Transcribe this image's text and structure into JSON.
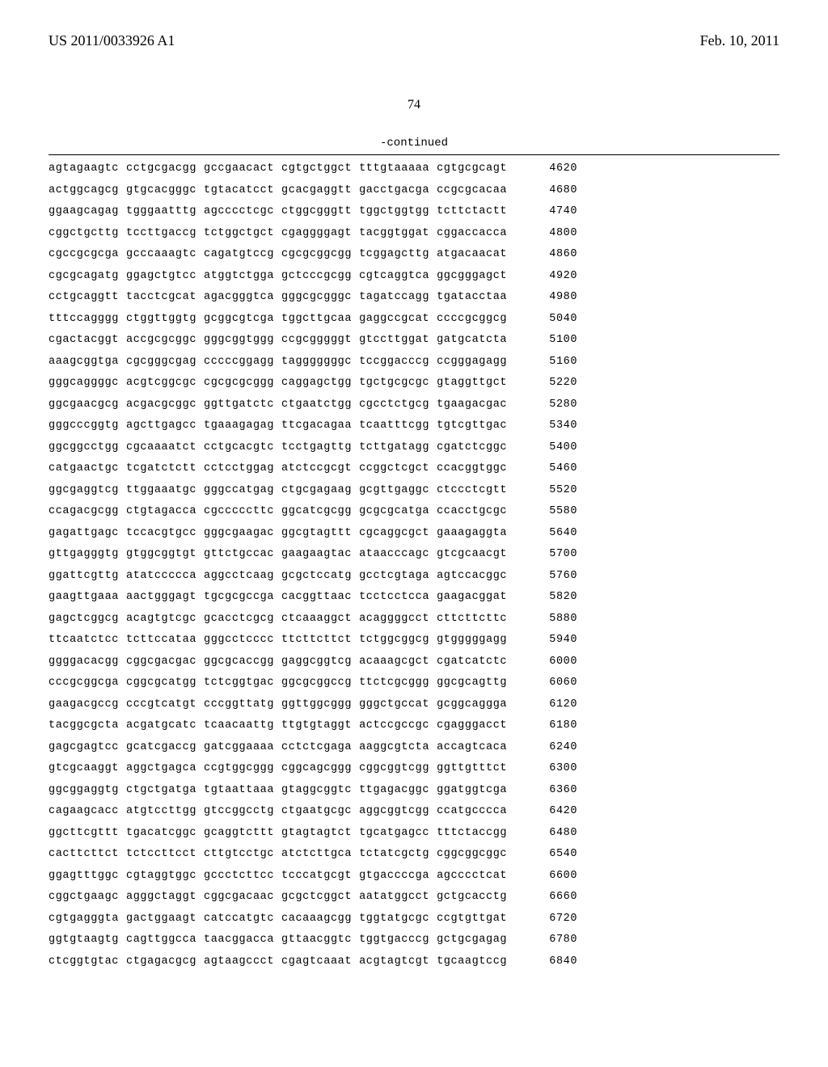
{
  "header": {
    "publication_number": "US 2011/0033926 A1",
    "publication_date": "Feb. 10, 2011"
  },
  "page_number": "74",
  "continued_label": "-continued",
  "sequence": {
    "font_family": "Courier New",
    "font_size_pt": 10,
    "text_color": "#000000",
    "background_color": "#ffffff",
    "block_length": 10,
    "blocks_per_row": 6,
    "rows": [
      {
        "blocks": [
          "agtagaagtc",
          "cctgcgacgg",
          "gccgaacact",
          "cgtgctggct",
          "tttgtaaaaa",
          "cgtgcgcagt"
        ],
        "pos": 4620
      },
      {
        "blocks": [
          "actggcagcg",
          "gtgcacgggc",
          "tgtacatcct",
          "gcacgaggtt",
          "gacctgacga",
          "ccgcgcacaa"
        ],
        "pos": 4680
      },
      {
        "blocks": [
          "ggaagcagag",
          "tgggaatttg",
          "agcccctcgc",
          "ctggcgggtt",
          "tggctggtgg",
          "tcttctactt"
        ],
        "pos": 4740
      },
      {
        "blocks": [
          "cggctgcttg",
          "tccttgaccg",
          "tctggctgct",
          "cgaggggagt",
          "tacggtggat",
          "cggaccacca"
        ],
        "pos": 4800
      },
      {
        "blocks": [
          "cgccgcgcga",
          "gcccaaagtc",
          "cagatgtccg",
          "cgcgcggcgg",
          "tcggagcttg",
          "atgacaacat"
        ],
        "pos": 4860
      },
      {
        "blocks": [
          "cgcgcagatg",
          "ggagctgtcc",
          "atggtctgga",
          "gctcccgcgg",
          "cgtcaggtca",
          "ggcgggagct"
        ],
        "pos": 4920
      },
      {
        "blocks": [
          "cctgcaggtt",
          "tacctcgcat",
          "agacgggtca",
          "gggcgcgggc",
          "tagatccagg",
          "tgatacctaa"
        ],
        "pos": 4980
      },
      {
        "blocks": [
          "tttccagggg",
          "ctggttggtg",
          "gcggcgtcga",
          "tggcttgcaa",
          "gaggccgcat",
          "ccccgcggcg"
        ],
        "pos": 5040
      },
      {
        "blocks": [
          "cgactacggt",
          "accgcgcggc",
          "gggcggtggg",
          "ccgcgggggt",
          "gtccttggat",
          "gatgcatcta"
        ],
        "pos": 5100
      },
      {
        "blocks": [
          "aaagcggtga",
          "cgcgggcgag",
          "cccccggagg",
          "tagggggggc",
          "tccggacccg",
          "ccgggagagg"
        ],
        "pos": 5160
      },
      {
        "blocks": [
          "gggcaggggc",
          "acgtcggcgc",
          "cgcgcgcggg",
          "caggagctgg",
          "tgctgcgcgc",
          "gtaggttgct"
        ],
        "pos": 5220
      },
      {
        "blocks": [
          "ggcgaacgcg",
          "acgacgcggc",
          "ggttgatctc",
          "ctgaatctgg",
          "cgcctctgcg",
          "tgaagacgac"
        ],
        "pos": 5280
      },
      {
        "blocks": [
          "gggcccggtg",
          "agcttgagcc",
          "tgaaagagag",
          "ttcgacagaa",
          "tcaatttcgg",
          "tgtcgttgac"
        ],
        "pos": 5340
      },
      {
        "blocks": [
          "ggcggcctgg",
          "cgcaaaatct",
          "cctgcacgtc",
          "tcctgagttg",
          "tcttgatagg",
          "cgatctcggc"
        ],
        "pos": 5400
      },
      {
        "blocks": [
          "catgaactgc",
          "tcgatctctt",
          "cctcctggag",
          "atctccgcgt",
          "ccggctcgct",
          "ccacggtggc"
        ],
        "pos": 5460
      },
      {
        "blocks": [
          "ggcgaggtcg",
          "ttggaaatgc",
          "gggccatgag",
          "ctgcgagaag",
          "gcgttgaggc",
          "ctccctcgtt"
        ],
        "pos": 5520
      },
      {
        "blocks": [
          "ccagacgcgg",
          "ctgtagacca",
          "cgcccccttc",
          "ggcatcgcgg",
          "gcgcgcatga",
          "ccacctgcgc"
        ],
        "pos": 5580
      },
      {
        "blocks": [
          "gagattgagc",
          "tccacgtgcc",
          "gggcgaagac",
          "ggcgtagttt",
          "cgcaggcgct",
          "gaaagaggta"
        ],
        "pos": 5640
      },
      {
        "blocks": [
          "gttgagggtg",
          "gtggcggtgt",
          "gttctgccac",
          "gaagaagtac",
          "ataacccagc",
          "gtcgcaacgt"
        ],
        "pos": 5700
      },
      {
        "blocks": [
          "ggattcgttg",
          "atatccccca",
          "aggcctcaag",
          "gcgctccatg",
          "gcctcgtaga",
          "agtccacggc"
        ],
        "pos": 5760
      },
      {
        "blocks": [
          "gaagttgaaa",
          "aactgggagt",
          "tgcgcgccga",
          "cacggttaac",
          "tcctcctcca",
          "gaagacggat"
        ],
        "pos": 5820
      },
      {
        "blocks": [
          "gagctcggcg",
          "acagtgtcgc",
          "gcacctcgcg",
          "ctcaaaggct",
          "acaggggcct",
          "cttcttcttc"
        ],
        "pos": 5880
      },
      {
        "blocks": [
          "ttcaatctcc",
          "tcttccataa",
          "gggcctcccc",
          "ttcttcttct",
          "tctggcggcg",
          "gtgggggagg"
        ],
        "pos": 5940
      },
      {
        "blocks": [
          "ggggacacgg",
          "cggcgacgac",
          "ggcgcaccgg",
          "gaggcggtcg",
          "acaaagcgct",
          "cgatcatctc"
        ],
        "pos": 6000
      },
      {
        "blocks": [
          "cccgcggcga",
          "cggcgcatgg",
          "tctcggtgac",
          "ggcgcggccg",
          "ttctcgcggg",
          "ggcgcagttg"
        ],
        "pos": 6060
      },
      {
        "blocks": [
          "gaagacgccg",
          "cccgtcatgt",
          "cccggttatg",
          "ggttggcggg",
          "gggctgccat",
          "gcggcaggga"
        ],
        "pos": 6120
      },
      {
        "blocks": [
          "tacggcgcta",
          "acgatgcatc",
          "tcaacaattg",
          "ttgtgtaggt",
          "actccgccgc",
          "cgagggacct"
        ],
        "pos": 6180
      },
      {
        "blocks": [
          "gagcgagtcc",
          "gcatcgaccg",
          "gatcggaaaa",
          "cctctcgaga",
          "aaggcgtcta",
          "accagtcaca"
        ],
        "pos": 6240
      },
      {
        "blocks": [
          "gtcgcaaggt",
          "aggctgagca",
          "ccgtggcggg",
          "cggcagcggg",
          "cggcggtcgg",
          "ggttgtttct"
        ],
        "pos": 6300
      },
      {
        "blocks": [
          "ggcggaggtg",
          "ctgctgatga",
          "tgtaattaaa",
          "gtaggcggtc",
          "ttgagacggc",
          "ggatggtcga"
        ],
        "pos": 6360
      },
      {
        "blocks": [
          "cagaagcacc",
          "atgtccttgg",
          "gtccggcctg",
          "ctgaatgcgc",
          "aggcggtcgg",
          "ccatgcccca"
        ],
        "pos": 6420
      },
      {
        "blocks": [
          "ggcttcgttt",
          "tgacatcggc",
          "gcaggtcttt",
          "gtagtagtct",
          "tgcatgagcc",
          "tttctaccgg"
        ],
        "pos": 6480
      },
      {
        "blocks": [
          "cacttcttct",
          "tctccttcct",
          "cttgtcctgc",
          "atctcttgca",
          "tctatcgctg",
          "cggcggcggc"
        ],
        "pos": 6540
      },
      {
        "blocks": [
          "ggagtttggc",
          "cgtaggtggc",
          "gccctcttcc",
          "tcccatgcgt",
          "gtgaccccga",
          "agcccctcat"
        ],
        "pos": 6600
      },
      {
        "blocks": [
          "cggctgaagc",
          "agggctaggt",
          "cggcgacaac",
          "gcgctcggct",
          "aatatggcct",
          "gctgcacctg"
        ],
        "pos": 6660
      },
      {
        "blocks": [
          "cgtgagggta",
          "gactggaagt",
          "catccatgtc",
          "cacaaagcgg",
          "tggtatgcgc",
          "ccgtgttgat"
        ],
        "pos": 6720
      },
      {
        "blocks": [
          "ggtgtaagtg",
          "cagttggcca",
          "taacggacca",
          "gttaacggtc",
          "tggtgacccg",
          "gctgcgagag"
        ],
        "pos": 6780
      },
      {
        "blocks": [
          "ctcggtgtac",
          "ctgagacgcg",
          "agtaagccct",
          "cgagtcaaat",
          "acgtagtcgt",
          "tgcaagtccg"
        ],
        "pos": 6840
      }
    ]
  }
}
